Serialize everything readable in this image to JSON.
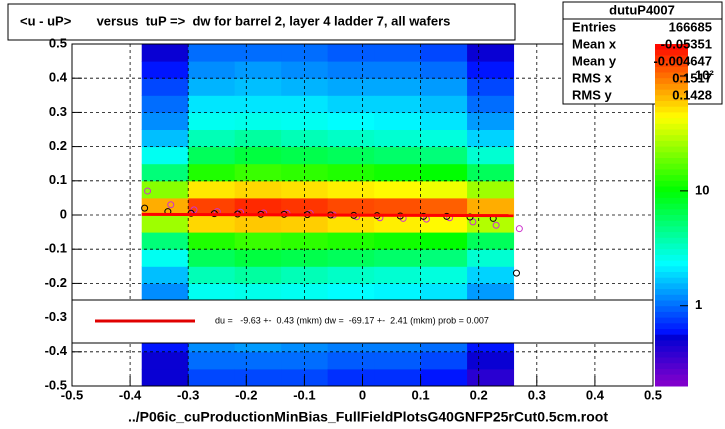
{
  "chart_data": {
    "type": "heatmap",
    "title": "<u - uP>       versus  tuP =>  dw for barrel 2, layer 4 ladder 7, all wafers",
    "x_label": "../P06ic_cuProductionMinBias_FullFieldPlotsG40GNFP25rCut0.5cm.root",
    "xlim": [
      -0.5,
      0.5
    ],
    "ylim": [
      -0.5,
      0.5
    ],
    "xticks": [
      -0.5,
      -0.4,
      -0.3,
      -0.2,
      -0.1,
      0,
      0.1,
      0.2,
      0.3,
      0.4,
      0.5
    ],
    "yticks": [
      -0.5,
      -0.4,
      -0.3,
      -0.2,
      -0.1,
      0,
      0.1,
      0.2,
      0.3,
      0.4,
      0.5
    ],
    "grid": true,
    "zlim": [
      0.2,
      190
    ],
    "zlog": true,
    "zticks": [
      1,
      10,
      {
        "value": 100,
        "label": "10²"
      }
    ],
    "heatmap": {
      "x_edges": [
        -0.38,
        -0.3,
        -0.22,
        -0.14,
        -0.06,
        0.02,
        0.1,
        0.18,
        0.26
      ],
      "y_edges": [
        -0.5,
        -0.45,
        -0.4,
        -0.35,
        -0.3,
        -0.25,
        -0.2,
        -0.15,
        -0.1,
        -0.05,
        0,
        0.05,
        0.1,
        0.15,
        0.2,
        0.25,
        0.3,
        0.35,
        0.4,
        0.45,
        0.5
      ],
      "counts": [
        [
          0.5,
          0.5,
          0.6,
          0.8,
          1,
          1.2,
          1.6,
          2.5,
          5,
          25,
          70,
          22,
          5,
          2.5,
          1.6,
          1.2,
          1,
          0.8,
          0.6,
          0.5
        ],
        [
          0.8,
          1,
          1.2,
          1.5,
          2,
          2.5,
          3.5,
          6,
          12,
          55,
          130,
          50,
          12,
          6,
          3.5,
          2.5,
          2,
          1.5,
          1.2,
          1
        ],
        [
          0.8,
          1,
          1.3,
          1.6,
          2,
          2.6,
          4,
          7,
          14,
          60,
          150,
          55,
          14,
          7,
          4,
          2.6,
          2,
          1.6,
          1.3,
          1
        ],
        [
          0.8,
          1,
          1.2,
          1.5,
          2,
          2.5,
          3.5,
          6.5,
          13,
          58,
          140,
          52,
          13,
          6.5,
          3.5,
          2.5,
          2,
          1.5,
          1.2,
          1
        ],
        [
          0.7,
          0.9,
          1.1,
          1.4,
          1.8,
          2.3,
          3.2,
          6,
          12,
          52,
          125,
          48,
          12,
          6,
          3.2,
          2.3,
          1.8,
          1.4,
          1.1,
          0.9
        ],
        [
          0.7,
          0.9,
          1.1,
          1.4,
          1.8,
          2.2,
          3,
          5.5,
          11,
          48,
          120,
          45,
          11,
          5.5,
          3,
          2.2,
          1.8,
          1.4,
          1.1,
          0.9
        ],
        [
          0.6,
          0.8,
          1,
          1.3,
          1.6,
          2,
          2.8,
          5,
          10,
          45,
          110,
          40,
          10,
          5,
          2.8,
          2,
          1.6,
          1.3,
          1,
          0.8
        ],
        [
          0.4,
          0.5,
          0.6,
          0.8,
          1,
          1.3,
          1.8,
          3,
          6,
          28,
          70,
          25,
          6,
          3,
          1.8,
          1.3,
          1,
          0.8,
          0.6,
          0.5
        ]
      ]
    },
    "series": [
      {
        "color": "#cc33cc",
        "marker": "circle",
        "x": [
          -0.37,
          -0.33,
          -0.29,
          -0.25,
          -0.21,
          -0.17,
          -0.13,
          -0.09,
          -0.05,
          -0.01,
          0.03,
          0.07,
          0.11,
          0.15,
          0.19,
          0.23,
          0.27
        ],
        "values": [
          0.07,
          0.03,
          0.015,
          0.01,
          0.008,
          0.006,
          0.005,
          0.005,
          0.0,
          -0.005,
          -0.008,
          -0.01,
          -0.012,
          -0.008,
          -0.02,
          -0.03,
          -0.04
        ]
      },
      {
        "color": "#000000",
        "marker": "circle",
        "x": [
          -0.375,
          -0.335,
          -0.295,
          -0.255,
          -0.215,
          -0.175,
          -0.135,
          -0.095,
          -0.055,
          -0.015,
          0.025,
          0.065,
          0.105,
          0.145,
          0.185,
          0.225,
          0.265
        ],
        "values": [
          0.02,
          0.01,
          0.005,
          0.004,
          0.003,
          0.002,
          0.002,
          0.001,
          0.0,
          -0.001,
          -0.002,
          -0.003,
          -0.004,
          -0.004,
          -0.006,
          -0.01,
          -0.17
        ]
      },
      {
        "color": "#ff0000",
        "marker": "line",
        "x": [
          -0.38,
          0.26
        ],
        "values": [
          0.002,
          -0.002
        ]
      }
    ],
    "stats": {
      "name": "dutuP4007",
      "rows": [
        [
          "Entries",
          166685
        ],
        [
          "Mean x",
          -0.05351
        ],
        [
          "Mean y",
          -0.004647
        ],
        [
          "RMS x",
          0.1517
        ],
        [
          "RMS y",
          0.1428
        ]
      ]
    },
    "fit_text": "du =   -9.63 +-  0.43 (mkm) dw =  -69.17 +-  2.41 (mkm) prob = 0.007"
  }
}
